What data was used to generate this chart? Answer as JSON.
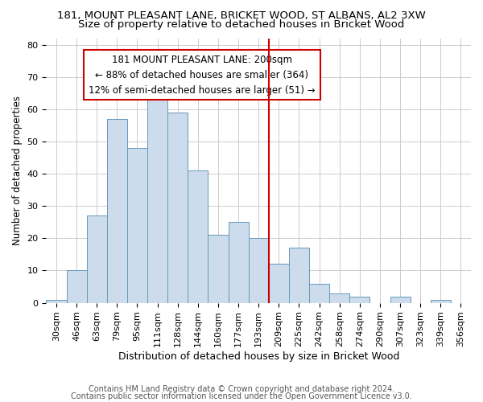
{
  "title1": "181, MOUNT PLEASANT LANE, BRICKET WOOD, ST ALBANS, AL2 3XW",
  "title2": "Size of property relative to detached houses in Bricket Wood",
  "xlabel": "Distribution of detached houses by size in Bricket Wood",
  "ylabel": "Number of detached properties",
  "categories": [
    "30sqm",
    "46sqm",
    "63sqm",
    "79sqm",
    "95sqm",
    "111sqm",
    "128sqm",
    "144sqm",
    "160sqm",
    "177sqm",
    "193sqm",
    "209sqm",
    "225sqm",
    "242sqm",
    "258sqm",
    "274sqm",
    "290sqm",
    "307sqm",
    "323sqm",
    "339sqm",
    "356sqm"
  ],
  "values": [
    1,
    10,
    27,
    57,
    48,
    65,
    59,
    41,
    21,
    25,
    20,
    12,
    17,
    6,
    3,
    2,
    0,
    2,
    0,
    1,
    0
  ],
  "bar_color": "#ccdcec",
  "bar_edge_color": "#6699bb",
  "red_line_x": 10.5,
  "annotation_title": "181 MOUNT PLEASANT LANE: 200sqm",
  "annotation_line1": "← 88% of detached houses are smaller (364)",
  "annotation_line2": "12% of semi-detached houses are larger (51) →",
  "footer1": "Contains HM Land Registry data © Crown copyright and database right 2024.",
  "footer2": "Contains public sector information licensed under the Open Government Licence v3.0.",
  "ylim": [
    0,
    82
  ],
  "yticks": [
    0,
    10,
    20,
    30,
    40,
    50,
    60,
    70,
    80
  ],
  "red_color": "#cc0000",
  "bg_color": "#ffffff",
  "title1_fontsize": 9.5,
  "title2_fontsize": 9.5,
  "xlabel_fontsize": 9,
  "ylabel_fontsize": 8.5,
  "tick_fontsize": 8,
  "footer_fontsize": 7,
  "annot_fontsize": 8.5
}
